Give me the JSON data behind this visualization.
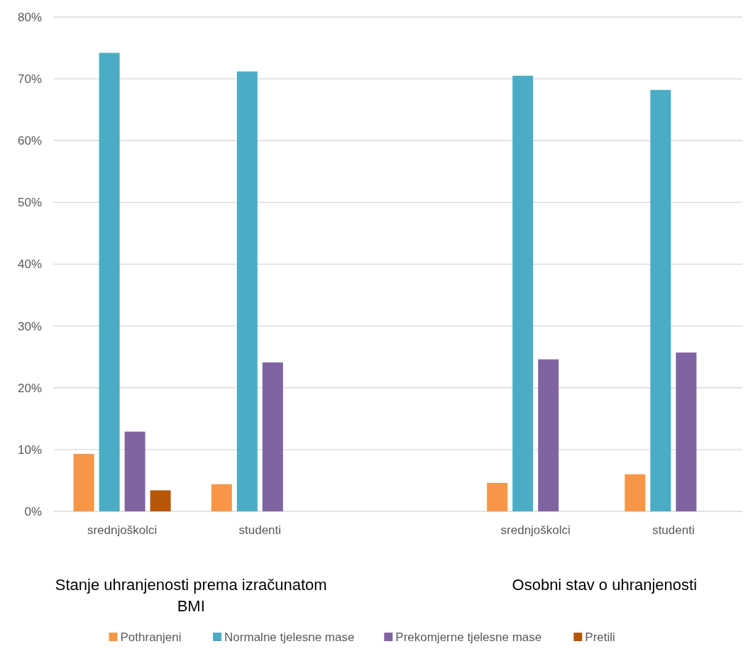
{
  "chart_data": {
    "type": "bar",
    "categories": [
      "srednjoškolci",
      "studenti",
      null,
      "srednjoškolci",
      "studenti"
    ],
    "series": [
      {
        "name": "Pothranjeni",
        "color": "#f79646",
        "values": [
          9.3,
          4.4,
          null,
          4.6,
          6.0
        ]
      },
      {
        "name": "Normalne tjelesne mase",
        "color": "#4bacc6",
        "values": [
          74.2,
          71.2,
          null,
          70.5,
          68.2
        ]
      },
      {
        "name": "Prekomjerne tjelesne mase",
        "color": "#8064a2",
        "values": [
          12.9,
          24.1,
          null,
          24.6,
          25.7
        ]
      },
      {
        "name": "Pretili",
        "color": "#b65708",
        "values": [
          3.4,
          null,
          null,
          null,
          null
        ]
      }
    ],
    "ylim": [
      0,
      80
    ],
    "yticks": [
      {
        "value": 0,
        "label": "0%"
      },
      {
        "value": 10,
        "label": "10%"
      },
      {
        "value": 20,
        "label": "20%"
      },
      {
        "value": 30,
        "label": "30%"
      },
      {
        "value": 40,
        "label": "40%"
      },
      {
        "value": 50,
        "label": "50%"
      },
      {
        "value": 60,
        "label": "60%"
      },
      {
        "value": 70,
        "label": "70%"
      },
      {
        "value": 80,
        "label": "80%"
      }
    ],
    "annotations": [
      "Stanje uhranjenosti prema izračunatom BMI",
      "Osobni stav o uhranjenosti"
    ],
    "grid": "y",
    "legend": "bottom"
  }
}
